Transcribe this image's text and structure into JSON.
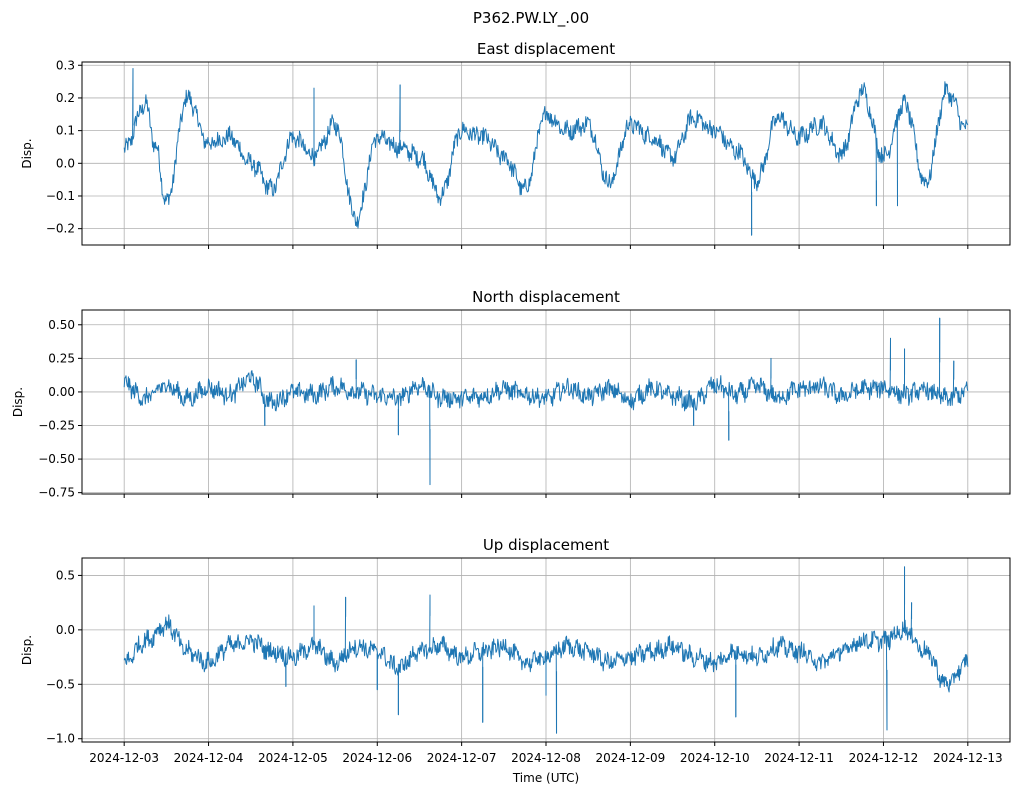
{
  "figure": {
    "suptitle": "P362.PW.LY_.00",
    "xlabel": "Time (UTC)",
    "line_color": "#1f77b4",
    "grid_color": "#b0b0b0"
  },
  "chart_data": [
    {
      "type": "line",
      "title": "East displacement",
      "ylabel": "Disp.",
      "xlim": [
        "2024-12-02T12:00",
        "2024-12-13T12:00"
      ],
      "ylim": [
        -0.25,
        0.31
      ],
      "yticks": [
        -0.2,
        -0.1,
        0.0,
        0.1,
        0.2,
        0.3
      ],
      "ytick_labels": [
        "−0.2",
        "−0.1",
        "0.0",
        "0.1",
        "0.2",
        "0.3"
      ],
      "grid": true,
      "series": [
        {
          "x": [
            "2024-12-03T00:00",
            "2024-12-03T06:00",
            "2024-12-03T09:00",
            "2024-12-03T12:00",
            "2024-12-03T18:00",
            "2024-12-04T00:00",
            "2024-12-04T06:00",
            "2024-12-04T12:00",
            "2024-12-04T18:00",
            "2024-12-05T00:00",
            "2024-12-05T06:00",
            "2024-12-05T12:00",
            "2024-12-05T18:00",
            "2024-12-06T00:00",
            "2024-12-06T06:00",
            "2024-12-06T12:00",
            "2024-12-06T18:00",
            "2024-12-07T00:00",
            "2024-12-07T06:00",
            "2024-12-07T12:00",
            "2024-12-07T18:00",
            "2024-12-08T00:00",
            "2024-12-08T06:00",
            "2024-12-08T12:00",
            "2024-12-08T18:00",
            "2024-12-09T00:00",
            "2024-12-09T06:00",
            "2024-12-09T12:00",
            "2024-12-09T18:00",
            "2024-12-10T00:00",
            "2024-12-10T06:00",
            "2024-12-10T12:00",
            "2024-12-10T18:00",
            "2024-12-11T00:00",
            "2024-12-11T06:00",
            "2024-12-11T12:00",
            "2024-12-11T18:00",
            "2024-12-12T00:00",
            "2024-12-12T06:00",
            "2024-12-12T12:00",
            "2024-12-12T18:00",
            "2024-12-13T00:00"
          ],
          "y": [
            0.04,
            0.18,
            0.05,
            -0.12,
            0.2,
            0.06,
            0.08,
            0.0,
            -0.08,
            0.08,
            0.02,
            0.12,
            -0.17,
            0.08,
            0.05,
            0.02,
            -0.1,
            0.1,
            0.08,
            0.02,
            -0.08,
            0.15,
            0.1,
            0.12,
            -0.06,
            0.12,
            0.08,
            0.02,
            0.14,
            0.1,
            0.04,
            -0.05,
            0.14,
            0.08,
            0.12,
            0.03,
            0.22,
            0.02,
            0.18,
            -0.06,
            0.22,
            0.1
          ],
          "spikes": [
            [
              "2024-12-03T02:30",
              0.29
            ],
            [
              "2024-12-05T06:00",
              0.23
            ],
            [
              "2024-12-06T06:30",
              0.24
            ],
            [
              "2024-12-10T10:30",
              -0.22
            ],
            [
              "2024-12-11T22:00",
              -0.13
            ],
            [
              "2024-12-12T04:00",
              -0.13
            ]
          ]
        }
      ]
    },
    {
      "type": "line",
      "title": "North displacement",
      "ylabel": "Disp.",
      "xlim": [
        "2024-12-02T12:00",
        "2024-12-13T12:00"
      ],
      "ylim": [
        -0.76,
        0.61
      ],
      "yticks": [
        -0.75,
        -0.5,
        -0.25,
        0.0,
        0.25,
        0.5
      ],
      "ytick_labels": [
        "−0.75",
        "−0.50",
        "−0.25",
        "0.00",
        "0.25",
        "0.50"
      ],
      "grid": true,
      "series": [
        {
          "x": [
            "2024-12-03T00:00",
            "2024-12-03T06:00",
            "2024-12-03T12:00",
            "2024-12-03T18:00",
            "2024-12-04T00:00",
            "2024-12-04T06:00",
            "2024-12-04T12:00",
            "2024-12-04T18:00",
            "2024-12-05T00:00",
            "2024-12-05T06:00",
            "2024-12-05T12:00",
            "2024-12-05T18:00",
            "2024-12-06T00:00",
            "2024-12-06T06:00",
            "2024-12-06T12:00",
            "2024-12-06T18:00",
            "2024-12-07T00:00",
            "2024-12-07T06:00",
            "2024-12-07T12:00",
            "2024-12-07T18:00",
            "2024-12-08T00:00",
            "2024-12-08T06:00",
            "2024-12-08T12:00",
            "2024-12-08T18:00",
            "2024-12-09T00:00",
            "2024-12-09T06:00",
            "2024-12-09T12:00",
            "2024-12-09T18:00",
            "2024-12-10T00:00",
            "2024-12-10T06:00",
            "2024-12-10T12:00",
            "2024-12-10T18:00",
            "2024-12-11T00:00",
            "2024-12-11T06:00",
            "2024-12-11T12:00",
            "2024-12-11T18:00",
            "2024-12-12T00:00",
            "2024-12-12T06:00",
            "2024-12-12T12:00",
            "2024-12-12T18:00",
            "2024-12-13T00:00"
          ],
          "y": [
            0.06,
            -0.05,
            0.05,
            -0.05,
            0.03,
            -0.02,
            0.1,
            -0.08,
            0.0,
            -0.02,
            0.04,
            0.0,
            -0.03,
            -0.05,
            0.05,
            -0.04,
            -0.05,
            -0.03,
            0.02,
            -0.02,
            -0.05,
            0.03,
            -0.03,
            0.02,
            -0.06,
            0.02,
            -0.03,
            -0.08,
            0.05,
            -0.02,
            0.04,
            -0.04,
            0.02,
            0.04,
            -0.03,
            0.02,
            0.03,
            -0.02,
            0.01,
            -0.05,
            0.0
          ],
          "spikes": [
            [
              "2024-12-04T16:00",
              -0.25
            ],
            [
              "2024-12-05T18:00",
              0.24
            ],
            [
              "2024-12-06T06:00",
              -0.32
            ],
            [
              "2024-12-06T15:00",
              -0.69
            ],
            [
              "2024-12-09T18:00",
              -0.25
            ],
            [
              "2024-12-10T04:00",
              -0.36
            ],
            [
              "2024-12-10T16:00",
              0.25
            ],
            [
              "2024-12-12T02:00",
              0.4
            ],
            [
              "2024-12-12T06:00",
              0.32
            ],
            [
              "2024-12-12T16:00",
              0.55
            ],
            [
              "2024-12-12T20:00",
              0.23
            ]
          ]
        }
      ]
    },
    {
      "type": "line",
      "title": "Up displacement",
      "ylabel": "Disp.",
      "xlim": [
        "2024-12-02T12:00",
        "2024-12-13T12:00"
      ],
      "ylim": [
        -1.03,
        0.66
      ],
      "yticks": [
        -1.0,
        -0.5,
        0.0,
        0.5
      ],
      "ytick_labels": [
        "−1.0",
        "−0.5",
        "0.0",
        "0.5"
      ],
      "grid": true,
      "series": [
        {
          "x": [
            "2024-12-03T00:00",
            "2024-12-03T06:00",
            "2024-12-03T12:00",
            "2024-12-03T18:00",
            "2024-12-04T00:00",
            "2024-12-04T06:00",
            "2024-12-04T12:00",
            "2024-12-04T18:00",
            "2024-12-05T00:00",
            "2024-12-05T06:00",
            "2024-12-05T12:00",
            "2024-12-05T18:00",
            "2024-12-06T00:00",
            "2024-12-06T06:00",
            "2024-12-06T12:00",
            "2024-12-06T18:00",
            "2024-12-07T00:00",
            "2024-12-07T06:00",
            "2024-12-07T12:00",
            "2024-12-07T18:00",
            "2024-12-08T00:00",
            "2024-12-08T06:00",
            "2024-12-08T12:00",
            "2024-12-08T18:00",
            "2024-12-09T00:00",
            "2024-12-09T06:00",
            "2024-12-09T12:00",
            "2024-12-09T18:00",
            "2024-12-10T00:00",
            "2024-12-10T06:00",
            "2024-12-10T12:00",
            "2024-12-10T18:00",
            "2024-12-11T00:00",
            "2024-12-11T06:00",
            "2024-12-11T12:00",
            "2024-12-11T18:00",
            "2024-12-12T00:00",
            "2024-12-12T06:00",
            "2024-12-12T12:00",
            "2024-12-12T18:00",
            "2024-12-13T00:00"
          ],
          "y": [
            -0.3,
            -0.1,
            0.05,
            -0.2,
            -0.3,
            -0.15,
            -0.1,
            -0.2,
            -0.25,
            -0.15,
            -0.3,
            -0.15,
            -0.2,
            -0.35,
            -0.2,
            -0.15,
            -0.25,
            -0.2,
            -0.15,
            -0.3,
            -0.25,
            -0.15,
            -0.2,
            -0.3,
            -0.25,
            -0.2,
            -0.15,
            -0.25,
            -0.3,
            -0.2,
            -0.25,
            -0.15,
            -0.2,
            -0.3,
            -0.2,
            -0.1,
            -0.1,
            0.0,
            -0.2,
            -0.5,
            -0.3
          ],
          "spikes": [
            [
              "2024-12-04T22:00",
              -0.52
            ],
            [
              "2024-12-05T06:00",
              0.22
            ],
            [
              "2024-12-05T15:00",
              0.3
            ],
            [
              "2024-12-06T00:00",
              -0.55
            ],
            [
              "2024-12-06T06:00",
              -0.78
            ],
            [
              "2024-12-06T15:00",
              0.32
            ],
            [
              "2024-12-07T06:00",
              -0.85
            ],
            [
              "2024-12-08T00:00",
              -0.6
            ],
            [
              "2024-12-08T03:00",
              -0.95
            ],
            [
              "2024-12-10T06:00",
              -0.8
            ],
            [
              "2024-12-12T01:00",
              -0.92
            ],
            [
              "2024-12-12T06:00",
              0.58
            ],
            [
              "2024-12-12T08:00",
              0.25
            ]
          ]
        }
      ]
    }
  ],
  "xticks": [
    "2024-12-03",
    "2024-12-04",
    "2024-12-05",
    "2024-12-06",
    "2024-12-07",
    "2024-12-08",
    "2024-12-09",
    "2024-12-10",
    "2024-12-11",
    "2024-12-12",
    "2024-12-13"
  ]
}
